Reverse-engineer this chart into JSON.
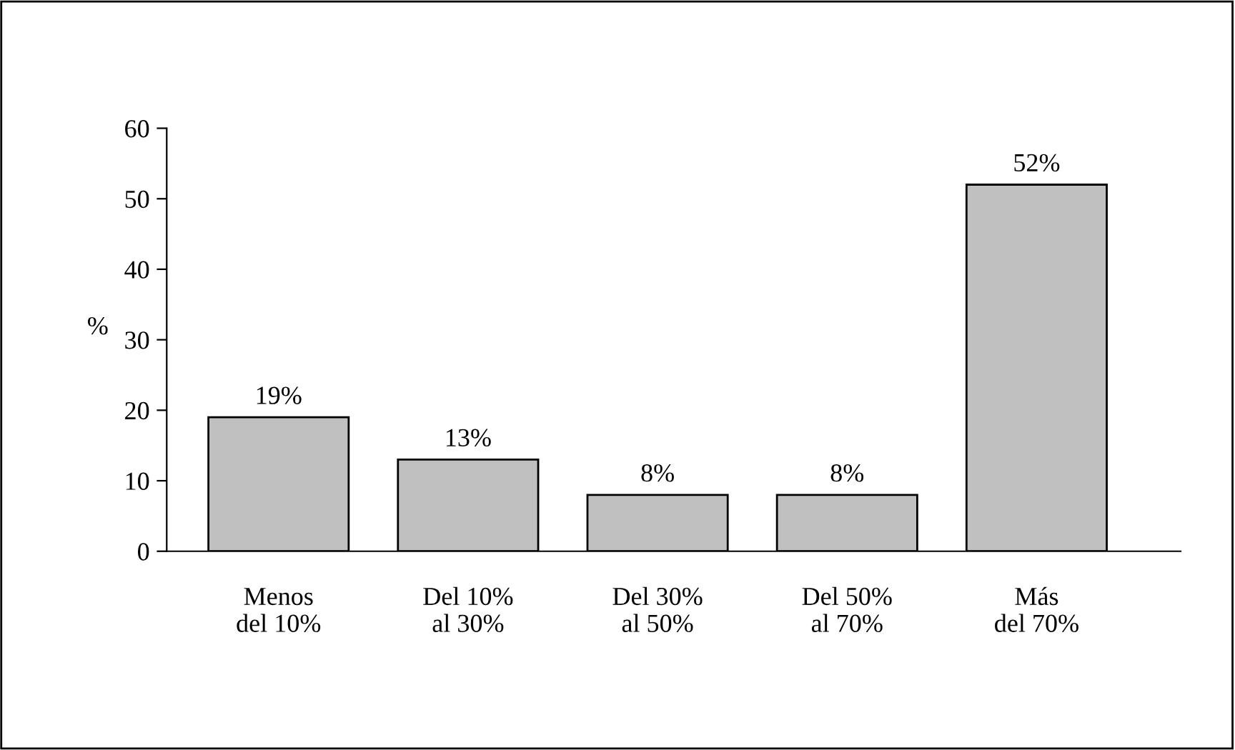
{
  "chart_data": {
    "type": "bar",
    "ylabel": "%",
    "categories": [
      "Menos\ndel 10%",
      "Del 10%\nal 30%",
      "Del 30%\nal 50%",
      "Del 50%\nal 70%",
      "Más\ndel 70%"
    ],
    "values": [
      19,
      13,
      8,
      8,
      52
    ],
    "value_labels": [
      "19%",
      "13%",
      "8%",
      "8%",
      "52%"
    ],
    "color": "#c0c0c0",
    "ylim": [
      0,
      60
    ],
    "yticks": [
      0,
      10,
      20,
      30,
      40,
      50,
      60
    ],
    "grid": false,
    "legend": false
  }
}
